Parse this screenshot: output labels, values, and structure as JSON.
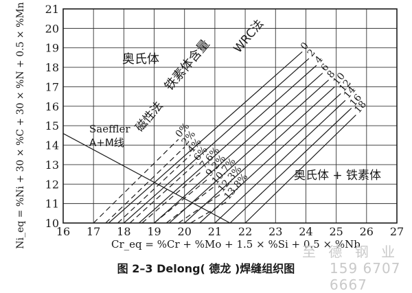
{
  "chart_data": {
    "type": "line",
    "title": "",
    "xlabel": "Cr_eq = %Cr + %Mo + 1.5 × %Si + 0.5 × %Nb",
    "ylabel": "Ni_eq = %Ni + 30 × %C + 30 × %N + 0.5 × %Mn",
    "xlim": [
      16,
      27
    ],
    "ylim": [
      10,
      21
    ],
    "x_ticks": [
      16,
      17,
      18,
      19,
      20,
      21,
      22,
      23,
      24,
      25,
      26,
      27
    ],
    "y_ticks": [
      10,
      11,
      12,
      13,
      14,
      15,
      16,
      17,
      18,
      19,
      20,
      21
    ],
    "grid": true,
    "series": [
      {
        "name": "WRC法",
        "style": "solid",
        "lines": [
          {
            "label": "0",
            "x": [
              17.5,
              23.88
            ],
            "y": [
              10.0,
              18.8
            ]
          },
          {
            "label": "2",
            "x": [
              18.0,
              24.1
            ],
            "y": [
              10.0,
              18.45
            ]
          },
          {
            "label": "4",
            "x": [
              18.5,
              24.35
            ],
            "y": [
              10.0,
              18.1
            ]
          },
          {
            "label": "6",
            "x": [
              19.0,
              24.55
            ],
            "y": [
              10.0,
              17.7
            ]
          },
          {
            "label": "8",
            "x": [
              19.5,
              24.75
            ],
            "y": [
              10.0,
              17.35
            ]
          },
          {
            "label": "10",
            "x": [
              20.0,
              24.95
            ],
            "y": [
              10.0,
              17.0
            ]
          },
          {
            "label": "12",
            "x": [
              20.5,
              25.15
            ],
            "y": [
              10.0,
              16.65
            ]
          },
          {
            "label": "14",
            "x": [
              21.0,
              25.3
            ],
            "y": [
              10.0,
              16.3
            ]
          },
          {
            "label": "16",
            "x": [
              21.5,
              25.5
            ],
            "y": [
              10.0,
              15.9
            ]
          },
          {
            "label": "18",
            "x": [
              22.0,
              25.65
            ],
            "y": [
              10.0,
              15.55
            ]
          }
        ]
      },
      {
        "name": "磁性法",
        "style": "dashed",
        "lines": [
          {
            "label": "0%",
            "x": [
              17.0,
              19.8
            ],
            "y": [
              10.0,
              14.3
            ]
          },
          {
            "label": "2%",
            "x": [
              17.4,
              20.0
            ],
            "y": [
              10.0,
              13.9
            ]
          },
          {
            "label": "4%",
            "x": [
              17.8,
              20.2
            ],
            "y": [
              10.0,
              13.5
            ]
          },
          {
            "label": "6%",
            "x": [
              18.2,
              20.4
            ],
            "y": [
              10.0,
              13.1
            ]
          },
          {
            "label": "7.6%",
            "x": [
              18.6,
              20.6
            ],
            "y": [
              10.0,
              12.7
            ]
          },
          {
            "label": "9.2%",
            "x": [
              19.0,
              20.8
            ],
            "y": [
              10.0,
              12.3
            ]
          },
          {
            "label": "10.7%",
            "x": [
              19.4,
              21.0
            ],
            "y": [
              10.0,
              11.9
            ]
          },
          {
            "label": "12.3%",
            "x": [
              19.8,
              21.2
            ],
            "y": [
              10.0,
              11.5
            ]
          },
          {
            "label": "13.8%",
            "x": [
              20.2,
              21.4
            ],
            "y": [
              10.0,
              11.1
            ]
          }
        ]
      },
      {
        "name": "Schaeffler A+M线",
        "style": "solid",
        "lines": [
          {
            "label": "",
            "x": [
              16.0,
              21.5
            ],
            "y": [
              14.6,
              10.0
            ]
          }
        ]
      }
    ],
    "annotations": [
      "奥氏体",
      "铁素体含量",
      "WRC法",
      "磁性法",
      "Saeffler",
      "A+M线",
      "奥氏体 + 铁素体"
    ],
    "caption": "图 2–3    Delong( 德龙 )焊缝组织图"
  },
  "text": {
    "ylabel": "Ni_eq = %Ni + 30 × %C + 30 × %N + 0.5 × %Mn",
    "xlabel": "Cr_eq = %Cr + %Mo + 1.5 × %Si + 0.5 × %Nb",
    "caption": "图 2–3    Delong( 德龙 )焊缝组织图",
    "region_austenite": "奥氏体",
    "ferrite_content": "铁素体含量",
    "wrc": "WRC法",
    "magnetic": "磁性法",
    "saeffler": "Saeffler",
    "am_line": "A+M线",
    "region_af": "奥氏体 + 铁素体",
    "watermark_1": "至 德 钢 业",
    "watermark_2": "159 6707 6667"
  }
}
